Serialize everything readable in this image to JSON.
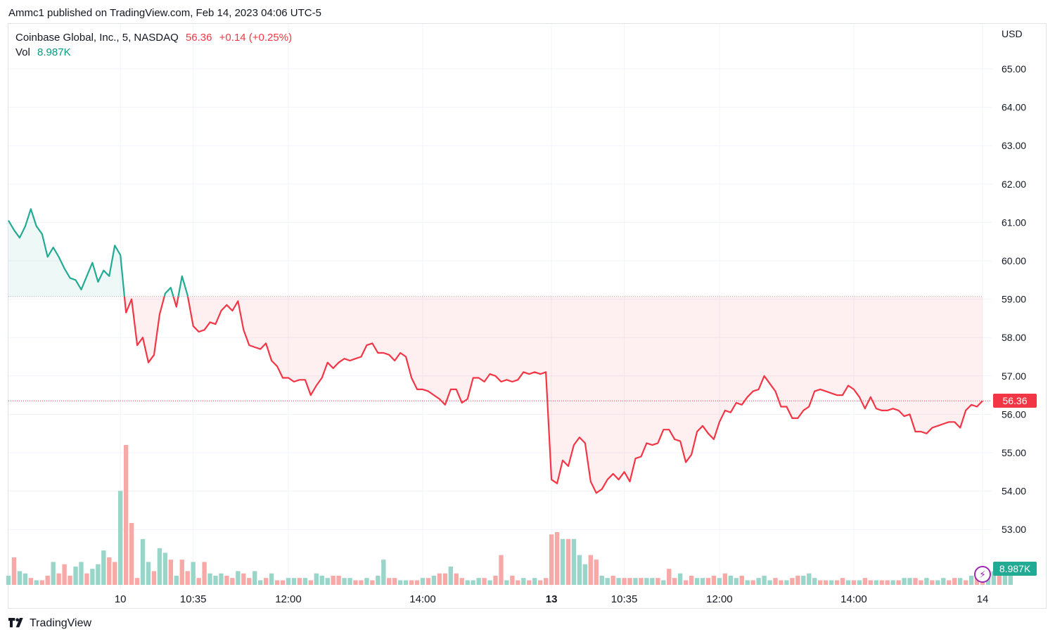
{
  "header": {
    "published": "Ammc1 published on TradingView.com, Feb 14, 2023 04:06 UTC-5"
  },
  "legend": {
    "symbol": "Coinbase Global, Inc., 5, NASDAQ",
    "price": "56.36",
    "change": "+0.14 (+0.25%)",
    "vol_label": "Vol",
    "vol_value": "8.987K"
  },
  "axis": {
    "currency": "USD"
  },
  "tags": {
    "last_price": "56.36",
    "last_volume": "8.987K"
  },
  "footer": {
    "brand": "TradingView"
  },
  "colors": {
    "up": "#22ab94",
    "down": "#f23645",
    "vol_up": "#9ad5c9",
    "vol_down": "#f7a9a7",
    "grid": "#f0f3fa"
  },
  "icons": {
    "bolt": "lightning-bolt-icon",
    "logo": "tradingview-logo-icon"
  },
  "chart_data": {
    "type": "area",
    "baseline": 59.07,
    "ylim": [
      52.6,
      65.9
    ],
    "yticks": [
      "65.00",
      "64.00",
      "63.00",
      "62.00",
      "61.00",
      "60.00",
      "59.00",
      "58.00",
      "57.00",
      "56.00",
      "55.00",
      "54.00",
      "53.00"
    ],
    "ytick_values": [
      65,
      64,
      63,
      62,
      61,
      60,
      59,
      58,
      57,
      56,
      55,
      54,
      53
    ],
    "xticks": [
      {
        "label": "10",
        "index": 20,
        "bold": false
      },
      {
        "label": "10:35",
        "index": 33,
        "bold": false
      },
      {
        "label": "12:00",
        "index": 50,
        "bold": false
      },
      {
        "label": "14:00",
        "index": 74,
        "bold": false
      },
      {
        "label": "13",
        "index": 97,
        "bold": true
      },
      {
        "label": "10:35",
        "index": 110,
        "bold": false
      },
      {
        "label": "12:00",
        "index": 127,
        "bold": false
      },
      {
        "label": "14:00",
        "index": 151,
        "bold": false
      },
      {
        "label": "14",
        "index": 174,
        "bold": false
      }
    ],
    "prices": [
      61.05,
      60.8,
      60.6,
      60.9,
      61.35,
      60.9,
      60.7,
      60.1,
      60.35,
      60.1,
      59.8,
      59.55,
      59.5,
      59.25,
      59.6,
      59.95,
      59.45,
      59.75,
      59.6,
      60.4,
      60.15,
      58.65,
      59.0,
      57.8,
      58.0,
      57.35,
      57.55,
      58.6,
      59.15,
      59.3,
      58.8,
      59.6,
      59.1,
      58.3,
      58.15,
      58.2,
      58.4,
      58.35,
      58.7,
      58.85,
      58.7,
      58.95,
      58.2,
      57.8,
      57.75,
      57.7,
      57.85,
      57.4,
      57.25,
      56.95,
      56.95,
      56.85,
      56.9,
      56.9,
      56.5,
      56.75,
      56.95,
      57.35,
      57.2,
      57.35,
      57.45,
      57.4,
      57.45,
      57.5,
      57.8,
      57.85,
      57.6,
      57.6,
      57.55,
      57.4,
      57.6,
      57.5,
      56.95,
      56.65,
      56.65,
      56.6,
      56.5,
      56.4,
      56.25,
      56.65,
      56.65,
      56.3,
      56.4,
      56.95,
      56.95,
      56.85,
      57.05,
      57.0,
      56.85,
      56.9,
      56.85,
      56.9,
      57.1,
      57.05,
      57.1,
      57.05,
      57.1,
      54.3,
      54.2,
      54.8,
      54.65,
      55.2,
      55.4,
      55.25,
      54.25,
      53.95,
      54.05,
      54.3,
      54.45,
      54.3,
      54.5,
      54.25,
      54.85,
      54.9,
      55.25,
      55.2,
      55.25,
      55.6,
      55.6,
      55.35,
      55.3,
      54.75,
      54.95,
      55.55,
      55.7,
      55.5,
      55.35,
      55.8,
      56.1,
      56.05,
      56.3,
      56.25,
      56.45,
      56.6,
      56.65,
      57.0,
      56.8,
      56.6,
      56.2,
      56.2,
      55.9,
      55.9,
      56.1,
      56.2,
      56.6,
      56.65,
      56.6,
      56.55,
      56.5,
      56.5,
      56.75,
      56.65,
      56.45,
      56.15,
      56.45,
      56.15,
      56.1,
      56.1,
      56.15,
      56.1,
      55.95,
      56.0,
      55.55,
      55.55,
      55.5,
      55.65,
      55.7,
      55.75,
      55.8,
      55.8,
      55.65,
      56.1,
      56.25,
      56.2,
      56.35
    ],
    "volume_labels": [
      "8.987K"
    ],
    "volumes": [
      4,
      12,
      6,
      5,
      3,
      2,
      2,
      4,
      10,
      5,
      9,
      4,
      8,
      10,
      5,
      7,
      9,
      15,
      12,
      10,
      41,
      61,
      27,
      3,
      20,
      10,
      6,
      16,
      14,
      11,
      4,
      11,
      6,
      10,
      3,
      10,
      5,
      4,
      5,
      4,
      3,
      6,
      5,
      3,
      6,
      2,
      3,
      5,
      2,
      2,
      3,
      3,
      3,
      3,
      2,
      5,
      4,
      3,
      4,
      4,
      3,
      3,
      2,
      2,
      3,
      2,
      4,
      11,
      3,
      3,
      2,
      2,
      2,
      2,
      3,
      3,
      4,
      5,
      5,
      8,
      5,
      3,
      2,
      2,
      3,
      3,
      2,
      4,
      13,
      2,
      4,
      2,
      3,
      2,
      3,
      2,
      3,
      22,
      23,
      20,
      20,
      20,
      13,
      9,
      13,
      11,
      4,
      3,
      4,
      3,
      3,
      3,
      3,
      3,
      3,
      3,
      3,
      2,
      7,
      3,
      5,
      2,
      4,
      3,
      3,
      3,
      4,
      3,
      5,
      4,
      3,
      4,
      2,
      2,
      3,
      4,
      2,
      3,
      2,
      2,
      3,
      4,
      4,
      5,
      3,
      2,
      2,
      2,
      2,
      3,
      2,
      2,
      2,
      3,
      2,
      2,
      2,
      2,
      2,
      2,
      3,
      3,
      3,
      2,
      3,
      2,
      2,
      3,
      2,
      3,
      3,
      2,
      4,
      5,
      5,
      6,
      6,
      4,
      4,
      6
    ],
    "volume_up": [
      1,
      0,
      1,
      1,
      0,
      1,
      0,
      0,
      1,
      0,
      0,
      0,
      1,
      1,
      0,
      1,
      1,
      1,
      0,
      0,
      1,
      0,
      0,
      0,
      1,
      1,
      0,
      1,
      1,
      0,
      1,
      0,
      0,
      1,
      0,
      0,
      1,
      1,
      1,
      0,
      0,
      1,
      0,
      0,
      1,
      1,
      0,
      1,
      0,
      0,
      1,
      1,
      0,
      1,
      0,
      1,
      1,
      1,
      0,
      0,
      1,
      1,
      0,
      0,
      1,
      0,
      1,
      1,
      0,
      0,
      1,
      1,
      0,
      0,
      1,
      0,
      1,
      0,
      0,
      1,
      0,
      0,
      1,
      1,
      1,
      0,
      1,
      0,
      0,
      1,
      0,
      0,
      1,
      0,
      1,
      0,
      0,
      0,
      0,
      1,
      0,
      1,
      1,
      1,
      0,
      0,
      1,
      1,
      0,
      1,
      0,
      0,
      1,
      0,
      1,
      1,
      0,
      1,
      0,
      0,
      1,
      0,
      0,
      1,
      1,
      0,
      0,
      1,
      0,
      1,
      1,
      0,
      1,
      0,
      1,
      1,
      1,
      0,
      0,
      1,
      0,
      0,
      1,
      1,
      1,
      0,
      0,
      1,
      0,
      0,
      1,
      0,
      1,
      0,
      0,
      1,
      0,
      0,
      1,
      0,
      1,
      1,
      0,
      0,
      1,
      0,
      1,
      1,
      0,
      0,
      1,
      0,
      1,
      0,
      0,
      1,
      1,
      0,
      1,
      1
    ]
  }
}
